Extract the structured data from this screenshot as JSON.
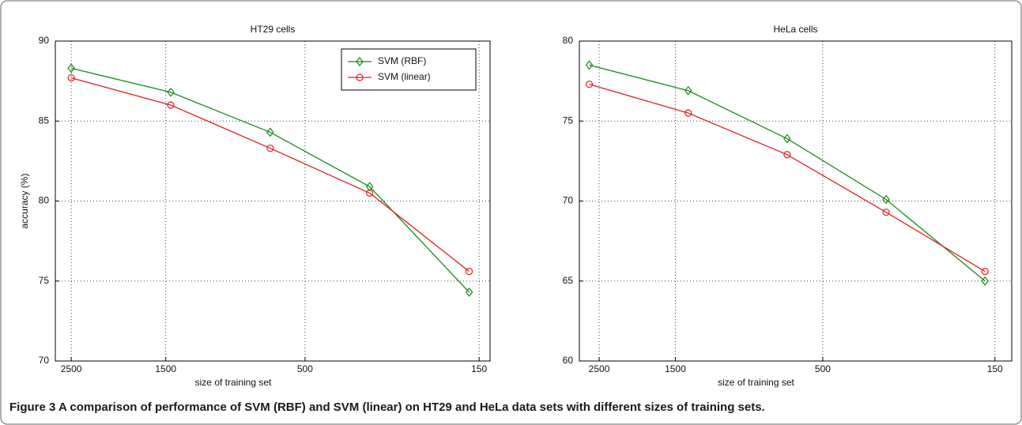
{
  "chart_data": [
    {
      "type": "line",
      "title": "HT29 cells",
      "x_label": "size of training set",
      "y_label": "accuracy (%)",
      "x": [
        1,
        2,
        3,
        4,
        5
      ],
      "series": [
        {
          "name": "SVM (RBF)",
          "color": "#1a8a1a",
          "marker": "diamond",
          "values": [
            88.3,
            86.8,
            84.3,
            80.9,
            74.3
          ]
        },
        {
          "name": "SVM (linear)",
          "color": "#e02020",
          "marker": "circle",
          "values": [
            87.7,
            86.0,
            83.3,
            80.5,
            75.6
          ]
        }
      ],
      "xlim": [
        0.84,
        5.21
      ],
      "xticks": [
        {
          "value": 1,
          "label": "2500"
        },
        {
          "value": 1.95,
          "label": "1500"
        },
        {
          "value": 3.35,
          "label": "500"
        },
        {
          "value": 5.1,
          "label": "150"
        }
      ],
      "ylim": [
        70,
        90
      ],
      "yticks": [
        70,
        75,
        80,
        85,
        90
      ],
      "grid": true,
      "legend": "upper right"
    },
    {
      "type": "line",
      "title": "HeLa cells",
      "x_label": "size of training set",
      "x": [
        1,
        2,
        3,
        4,
        5
      ],
      "series": [
        {
          "color": "#1a8a1a",
          "marker": "diamond",
          "values": [
            78.5,
            76.9,
            73.9,
            70.1,
            65.0
          ]
        },
        {
          "color": "#e02020",
          "marker": "circle",
          "values": [
            77.3,
            75.5,
            72.9,
            69.3,
            65.6
          ]
        }
      ],
      "xlim": [
        0.9,
        5.27
      ],
      "xticks": [
        {
          "value": 1.1,
          "label": "2500"
        },
        {
          "value": 1.87,
          "label": "1500"
        },
        {
          "value": 3.36,
          "label": "500"
        },
        {
          "value": 5.1,
          "label": "150"
        }
      ],
      "ylim": [
        60,
        80
      ],
      "yticks": [
        60,
        65,
        70,
        75,
        80
      ],
      "grid": true
    }
  ],
  "caption": {
    "label": "Figure 3",
    "text": "A comparison of performance of SVM (RBF) and SVM (linear) on HT29 and HeLa data sets with different sizes of training sets."
  }
}
